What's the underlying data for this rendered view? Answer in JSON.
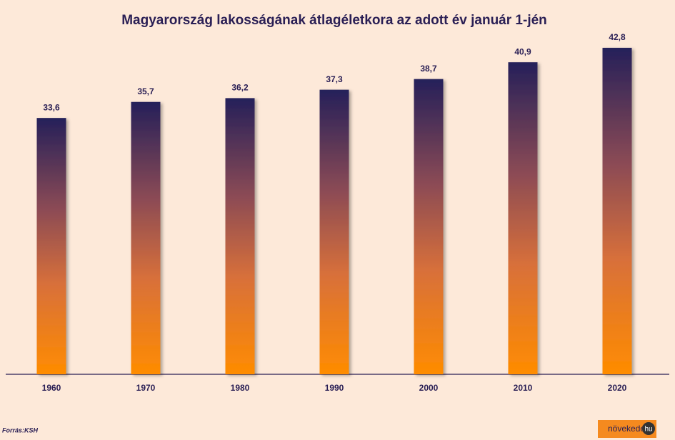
{
  "chart_data": {
    "type": "bar",
    "title": "Magyarország lakosságának átlagéletkora az adott év január 1-jén",
    "categories": [
      "1960",
      "1970",
      "1980",
      "1990",
      "2000",
      "2010",
      "2020"
    ],
    "values": [
      33.6,
      35.7,
      36.2,
      37.3,
      38.7,
      40.9,
      42.8
    ],
    "value_labels": [
      "33,6",
      "35,7",
      "36,2",
      "37,3",
      "38,7",
      "40,9",
      "42,8"
    ],
    "color": "#ff8c00",
    "source": "Forrás:KSH",
    "logo": {
      "text": "növekedés",
      "badge": "hu"
    }
  }
}
